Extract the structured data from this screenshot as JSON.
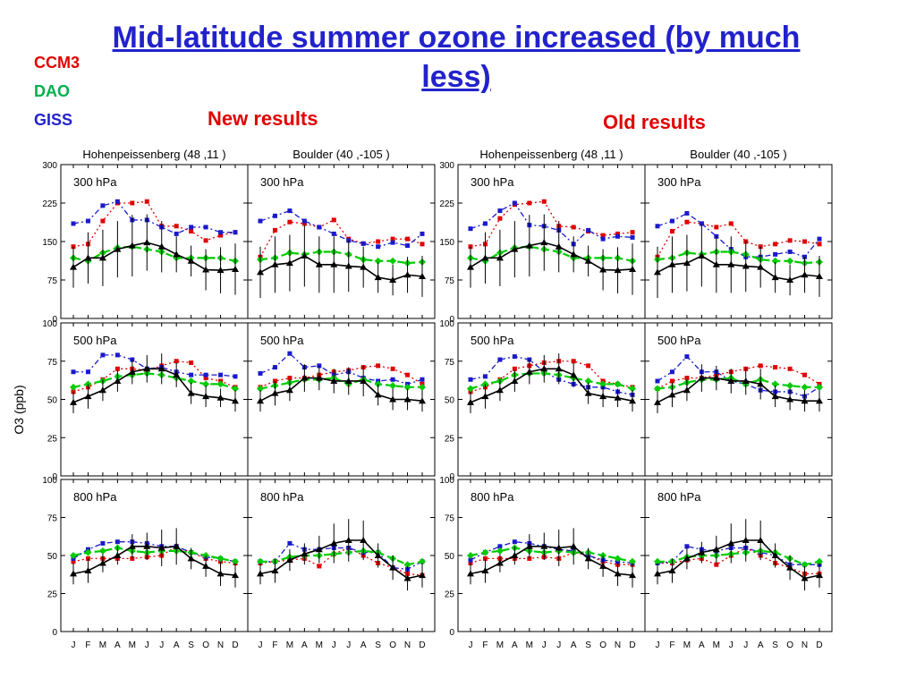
{
  "title": "Mid-latitude summer ozone increased (by much less)",
  "legend": [
    {
      "label": "CCM3",
      "color": "#e00000"
    },
    {
      "label": "DAO",
      "color": "#00b050"
    },
    {
      "label": "GISS",
      "color": "#2222cc"
    }
  ],
  "headers": {
    "new": "New results",
    "old": "Old results"
  },
  "chart_data": {
    "type": "line",
    "ylabel": "O3 (ppb)",
    "months": [
      "J",
      "F",
      "M",
      "A",
      "M",
      "J",
      "J",
      "A",
      "S",
      "O",
      "N",
      "D"
    ],
    "levels": [
      {
        "label": "300 hPa",
        "ylim": [
          0,
          300
        ],
        "ticks": [
          0,
          75,
          150,
          225,
          300
        ]
      },
      {
        "label": "500 hPa",
        "ylim": [
          0,
          100
        ],
        "ticks": [
          0,
          25,
          50,
          75,
          100
        ]
      },
      {
        "label": "800 hPa",
        "ylim": [
          0,
          100
        ],
        "ticks": [
          0,
          25,
          50,
          75,
          100
        ]
      }
    ],
    "series_styles": {
      "obs": {
        "color": "#000000",
        "marker": "triangle"
      },
      "ccm3": {
        "color": "#e00000",
        "marker": "square"
      },
      "dao": {
        "color": "#00cc00",
        "marker": "diamond"
      },
      "giss": {
        "color": "#1a1acc",
        "marker": "square"
      }
    },
    "panels": [
      {
        "title": "Hohenpeissenberg (48 ,11 )",
        "levels": [
          {
            "obs": [
              100,
              118,
              118,
              135,
              142,
              148,
              140,
              125,
              112,
              95,
              94,
              96
            ],
            "obs_err": [
              40,
              50,
              55,
              55,
              60,
              55,
              50,
              35,
              30,
              40,
              45,
              50
            ],
            "ccm3": [
              140,
              145,
              190,
              225,
              225,
              228,
              180,
              180,
              170,
              152,
              162,
              168
            ],
            "dao": [
              118,
              112,
              128,
              138,
              140,
              135,
              130,
              118,
              118,
              118,
              118,
              112
            ],
            "giss": [
              185,
              190,
              220,
              228,
              192,
              192,
              178,
              165,
              178,
              178,
              168,
              168
            ]
          },
          {
            "obs": [
              48,
              52,
              56,
              62,
              68,
              70,
              70,
              66,
              54,
              52,
              51,
              49
            ],
            "obs_err": [
              7,
              8,
              7,
              7,
              8,
              9,
              10,
              8,
              7,
              7,
              6,
              7
            ],
            "ccm3": [
              55,
              58,
              63,
              70,
              70,
              69,
              72,
              75,
              74,
              64,
              62,
              58
            ],
            "dao": [
              58,
              60,
              62,
              65,
              66,
              67,
              66,
              64,
              62,
              60,
              60,
              57
            ],
            "giss": [
              68,
              68,
              79,
              79,
              76,
              70,
              71,
              68,
              66,
              66,
              66,
              65
            ]
          },
          {
            "obs": [
              38,
              40,
              45,
              50,
              56,
              56,
              55,
              56,
              48,
              43,
              38,
              37
            ],
            "obs_err": [
              7,
              8,
              6,
              6,
              8,
              9,
              12,
              12,
              7,
              7,
              8,
              8
            ],
            "ccm3": [
              46,
              48,
              48,
              48,
              48,
              49,
              50,
              56,
              52,
              48,
              46,
              45
            ],
            "dao": [
              50,
              52,
              53,
              55,
              53,
              52,
              53,
              53,
              52,
              50,
              48,
              46
            ],
            "giss": [
              48,
              54,
              58,
              59,
              59,
              58,
              56,
              56,
              52,
              49,
              48,
              46
            ]
          }
        ]
      },
      {
        "title": "Boulder (40 ,-105 )",
        "levels": [
          {
            "obs": [
              90,
              105,
              108,
              122,
              105,
              105,
              102,
              100,
              80,
              75,
              85,
              82
            ],
            "obs_err": [
              50,
              55,
              55,
              60,
              55,
              55,
              50,
              40,
              30,
              30,
              35,
              40
            ],
            "ccm3": [
              120,
              172,
              188,
              185,
              178,
              192,
              155,
              146,
              150,
              155,
              155,
              145
            ],
            "dao": [
              115,
              118,
              128,
              125,
              130,
              130,
              125,
              115,
              112,
              112,
              108,
              110
            ],
            "giss": [
              190,
              200,
              210,
              190,
              178,
              165,
              152,
              146,
              140,
              148,
              142,
              165
            ]
          },
          {
            "obs": [
              49,
              54,
              56,
              64,
              64,
              62,
              62,
              62,
              53,
              50,
              50,
              49
            ],
            "obs_err": [
              7,
              8,
              7,
              9,
              8,
              8,
              9,
              10,
              7,
              7,
              7,
              7
            ],
            "ccm3": [
              58,
              62,
              64,
              64,
              66,
              68,
              69,
              71,
              72,
              70,
              66,
              60
            ],
            "dao": [
              57,
              59,
              61,
              63,
              63,
              64,
              60,
              63,
              60,
              59,
              58,
              58
            ],
            "giss": [
              67,
              71,
              80,
              71,
              72,
              66,
              68,
              64,
              62,
              63,
              60,
              63
            ]
          },
          {
            "obs": [
              38,
              40,
              47,
              51,
              54,
              58,
              60,
              60,
              50,
              42,
              35,
              37
            ],
            "obs_err": [
              7,
              8,
              7,
              7,
              9,
              13,
              14,
              13,
              8,
              8,
              8,
              8
            ],
            "ccm3": [
              45,
              46,
              47,
              48,
              43,
              51,
              55,
              50,
              45,
              42,
              38,
              37
            ],
            "dao": [
              46,
              46,
              49,
              50,
              50,
              51,
              52,
              53,
              52,
              48,
              44,
              46
            ],
            "giss": [
              46,
              46,
              58,
              54,
              54,
              55,
              55,
              52,
              52,
              42,
              41,
              46
            ]
          }
        ]
      },
      {
        "title": "Hohenpeissenberg (48 ,11 )",
        "levels": [
          {
            "obs": [
              100,
              118,
              118,
              135,
              142,
              148,
              140,
              125,
              112,
              95,
              94,
              96
            ],
            "obs_err": [
              40,
              50,
              55,
              55,
              60,
              55,
              50,
              35,
              30,
              40,
              45,
              50
            ],
            "ccm3": [
              140,
              145,
              195,
              222,
              225,
              228,
              180,
              178,
              170,
              162,
              165,
              168
            ],
            "dao": [
              118,
              112,
              128,
              138,
              140,
              135,
              130,
              118,
              118,
              118,
              118,
              112
            ],
            "giss": [
              175,
              185,
              210,
              225,
              182,
              180,
              172,
              145,
              172,
              155,
              160,
              158
            ]
          },
          {
            "obs": [
              48,
              52,
              56,
              62,
              68,
              70,
              70,
              66,
              54,
              52,
              51,
              49
            ],
            "obs_err": [
              7,
              8,
              7,
              7,
              8,
              9,
              10,
              8,
              7,
              7,
              6,
              7
            ],
            "ccm3": [
              55,
              58,
              63,
              70,
              72,
              74,
              75,
              75,
              72,
              62,
              60,
              58
            ],
            "dao": [
              57,
              60,
              62,
              66,
              67,
              67,
              66,
              64,
              62,
              60,
              60,
              57
            ],
            "giss": [
              63,
              65,
              76,
              78,
              76,
              68,
              63,
              60,
              58,
              58,
              55,
              53
            ]
          },
          {
            "obs": [
              38,
              40,
              45,
              50,
              56,
              56,
              55,
              56,
              48,
              43,
              38,
              37
            ],
            "obs_err": [
              7,
              8,
              6,
              6,
              8,
              9,
              12,
              12,
              7,
              7,
              8,
              8
            ],
            "ccm3": [
              45,
              48,
              48,
              48,
              48,
              49,
              48,
              52,
              50,
              46,
              44,
              44
            ],
            "dao": [
              50,
              52,
              53,
              55,
              53,
              52,
              53,
              52,
              52,
              50,
              48,
              46
            ],
            "giss": [
              47,
              52,
              56,
              59,
              58,
              56,
              54,
              53,
              50,
              47,
              46,
              45
            ]
          }
        ]
      },
      {
        "title": "Boulder (40 ,-105 )",
        "levels": [
          {
            "obs": [
              90,
              105,
              108,
              122,
              105,
              105,
              102,
              100,
              80,
              75,
              85,
              82
            ],
            "obs_err": [
              50,
              55,
              55,
              60,
              55,
              55,
              50,
              40,
              30,
              30,
              35,
              40
            ],
            "ccm3": [
              120,
              170,
              188,
              185,
              178,
              185,
              150,
              140,
              145,
              152,
              150,
              145
            ],
            "dao": [
              115,
              118,
              128,
              125,
              130,
              130,
              125,
              115,
              112,
              112,
              108,
              110
            ],
            "giss": [
              180,
              190,
              205,
              185,
              160,
              135,
              120,
              120,
              125,
              130,
              120,
              155
            ]
          },
          {
            "obs": [
              48,
              53,
              56,
              64,
              64,
              62,
              62,
              60,
              52,
              50,
              49,
              49
            ],
            "obs_err": [
              7,
              8,
              7,
              9,
              8,
              8,
              9,
              10,
              7,
              7,
              7,
              7
            ],
            "ccm3": [
              57,
              62,
              64,
              64,
              66,
              68,
              70,
              72,
              71,
              70,
              66,
              60
            ],
            "dao": [
              57,
              58,
              61,
              63,
              63,
              64,
              60,
              63,
              60,
              59,
              58,
              58
            ],
            "giss": [
              62,
              68,
              78,
              68,
              68,
              62,
              60,
              56,
              55,
              55,
              52,
              58
            ]
          },
          {
            "obs": [
              38,
              40,
              48,
              52,
              54,
              58,
              60,
              60,
              50,
              42,
              35,
              37
            ],
            "obs_err": [
              7,
              8,
              7,
              7,
              9,
              13,
              14,
              13,
              8,
              8,
              8,
              8
            ],
            "ccm3": [
              45,
              45,
              47,
              48,
              44,
              50,
              55,
              50,
              45,
              42,
              38,
              38
            ],
            "dao": [
              46,
              46,
              49,
              50,
              50,
              51,
              52,
              53,
              52,
              48,
              44,
              46
            ],
            "giss": [
              45,
              46,
              56,
              54,
              53,
              55,
              55,
              52,
              50,
              44,
              44,
              44
            ]
          }
        ]
      }
    ]
  }
}
